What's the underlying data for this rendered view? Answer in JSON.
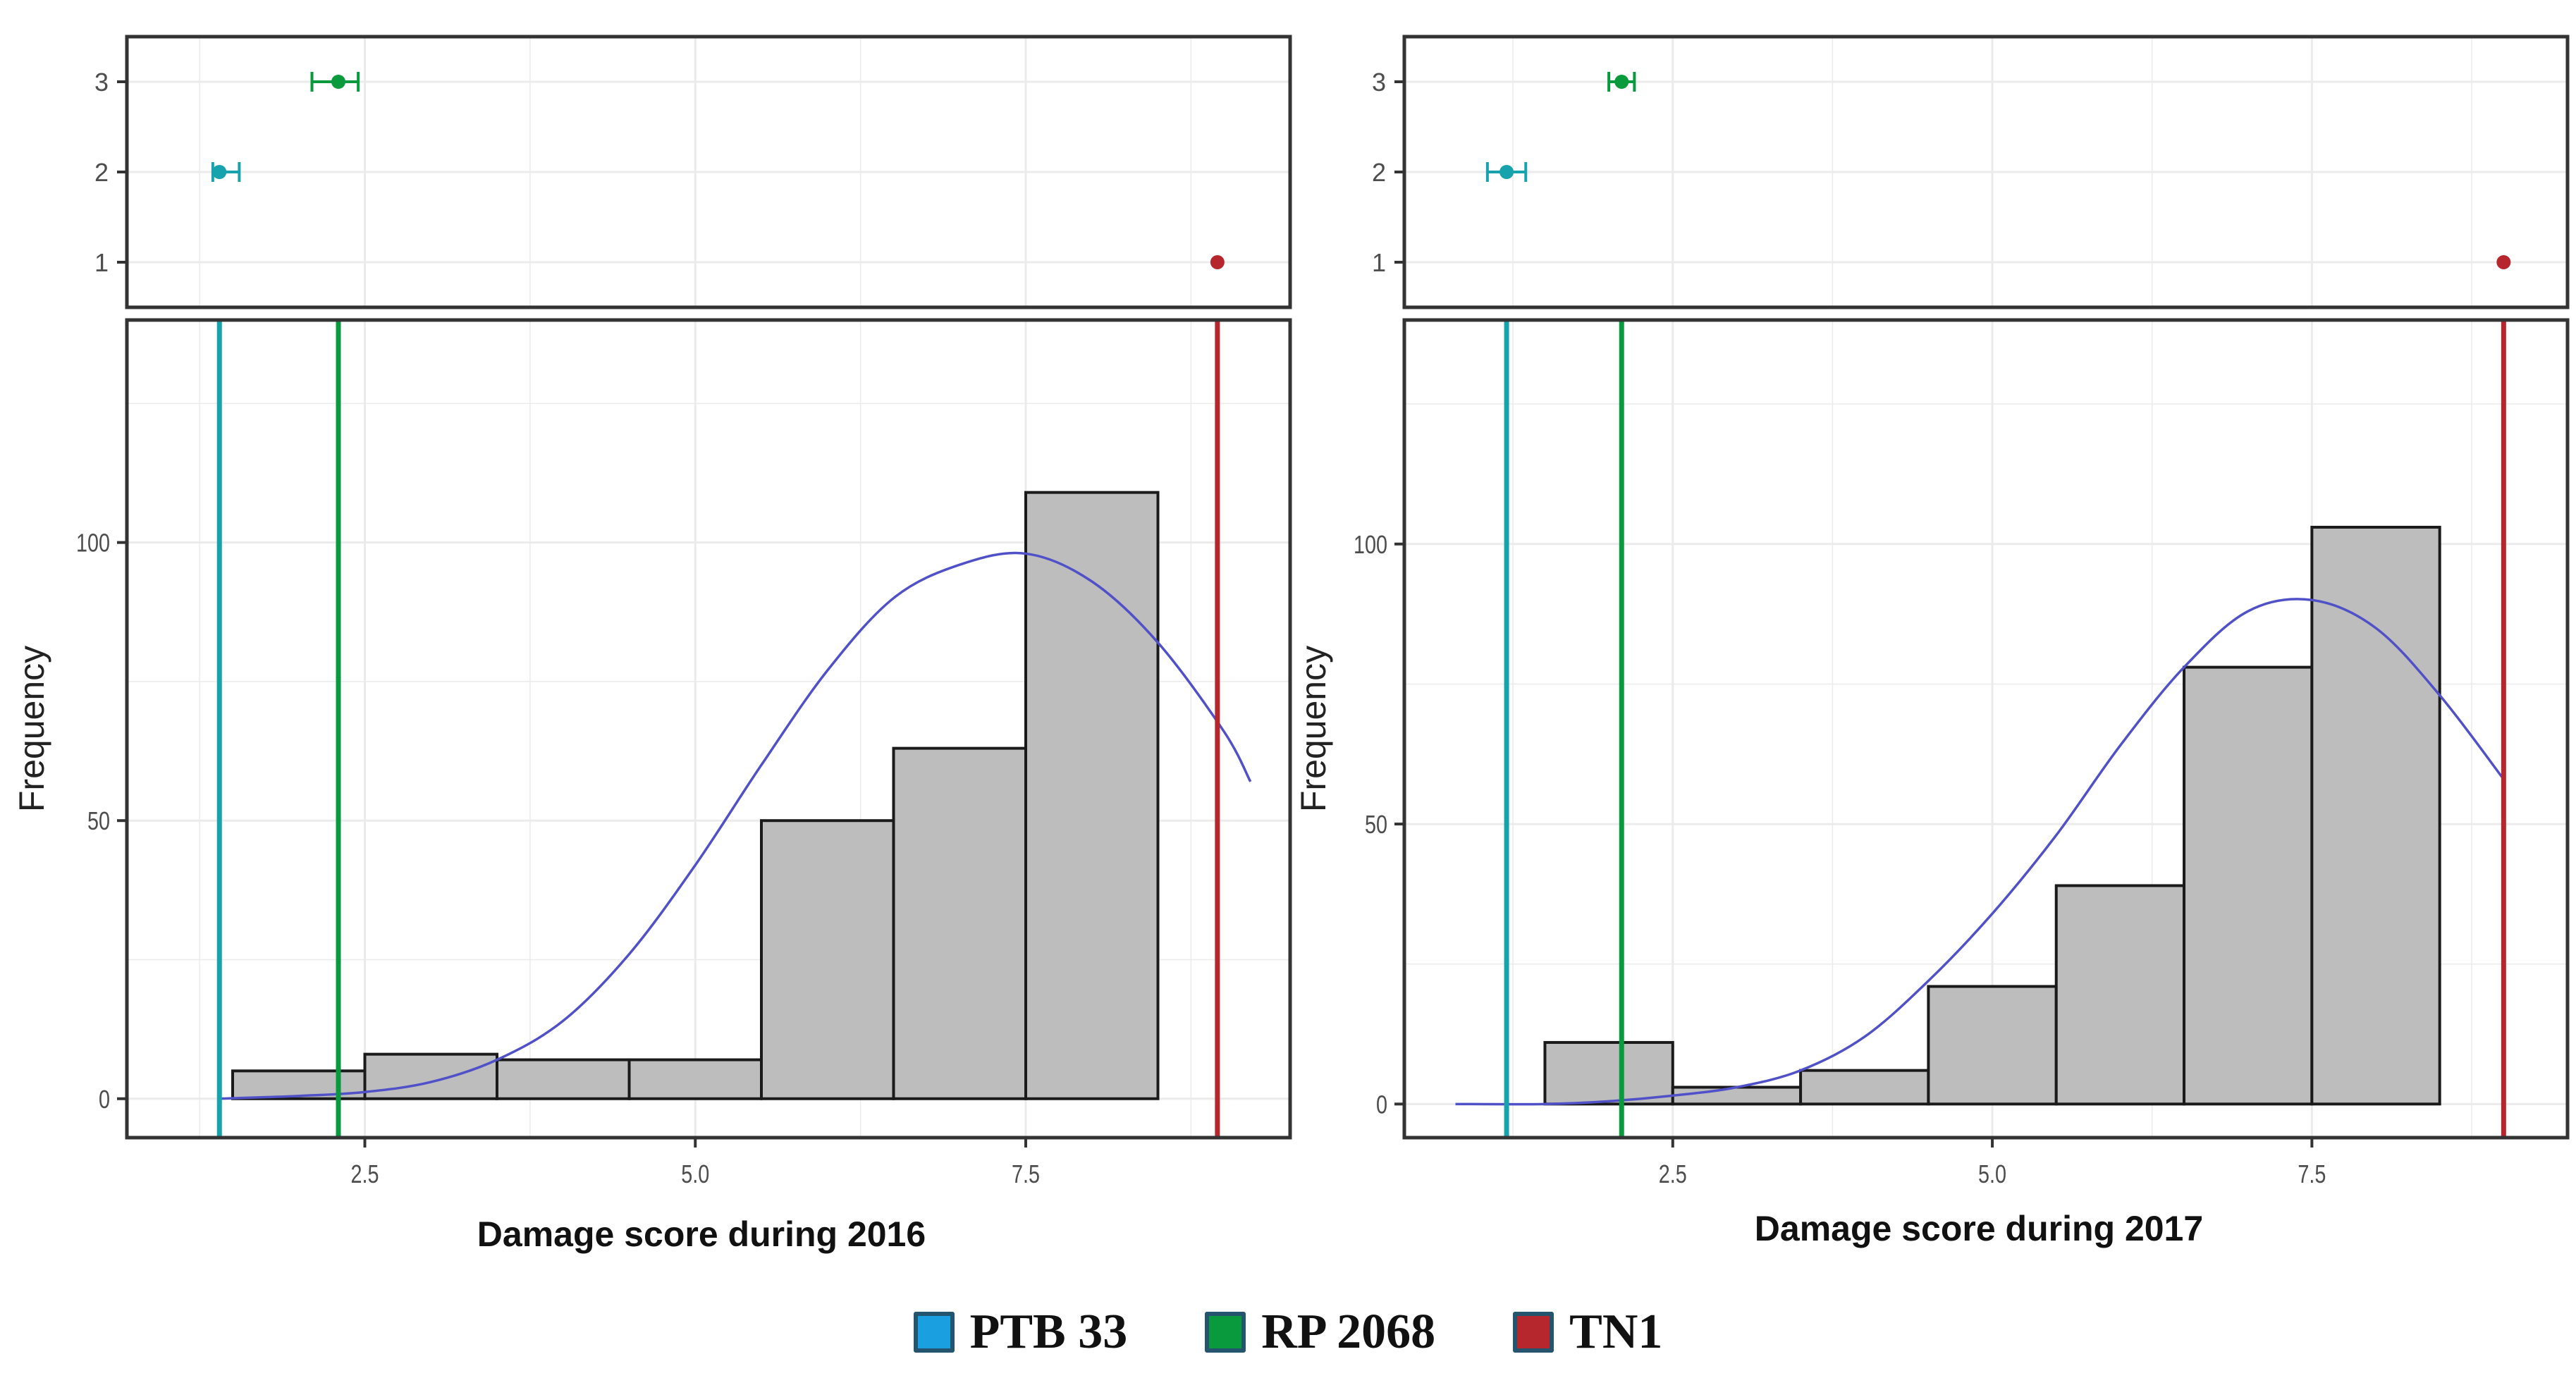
{
  "colors": {
    "ptb33": "#17a3ad",
    "rp2068": "#0a9a3e",
    "tn1": "#b5272d",
    "bar_fill": "#bdbdbd",
    "curve": "#5050c8",
    "grid": "#ebebeb"
  },
  "legend": [
    {
      "label": "PTB 33",
      "swatch": "#1aa0e0"
    },
    {
      "label": "RP 2068",
      "swatch": "#0a9a3e"
    },
    {
      "label": "TN1",
      "swatch": "#b5272d"
    }
  ],
  "chart_data": [
    {
      "type": "bar",
      "title": "",
      "xlabel": "Damage score during 2016",
      "ylabel": "Frequency",
      "xlim": [
        0.7,
        9.5
      ],
      "ylim": [
        -7,
        140
      ],
      "xticks": [
        2.5,
        5.0,
        7.5
      ],
      "xtick_labels": [
        "2.5",
        "5.0",
        "7.5"
      ],
      "yticks": [
        0,
        50,
        100
      ],
      "ytick_labels": [
        "0",
        "50",
        "100"
      ],
      "bins": [
        {
          "x0": 1.5,
          "x1": 2.5,
          "count": 5
        },
        {
          "x0": 2.5,
          "x1": 3.5,
          "count": 8
        },
        {
          "x0": 3.5,
          "x1": 4.5,
          "count": 7
        },
        {
          "x0": 4.5,
          "x1": 5.5,
          "count": 7
        },
        {
          "x0": 5.5,
          "x1": 6.5,
          "count": 50
        },
        {
          "x0": 6.5,
          "x1": 7.5,
          "count": 63
        },
        {
          "x0": 7.5,
          "x1": 8.5,
          "count": 109
        }
      ],
      "curve": {
        "x": [
          1.4,
          2.0,
          2.5,
          3.0,
          3.5,
          4.0,
          4.5,
          5.0,
          5.5,
          6.0,
          6.5,
          7.0,
          7.5,
          8.0,
          8.5,
          9.0,
          9.2
        ],
        "y": [
          0,
          0.5,
          1.2,
          3,
          7,
          14,
          26,
          42,
          60,
          77,
          90,
          96,
          98,
          93,
          82,
          66,
          57
        ]
      },
      "ref_lines": [
        {
          "name": "PTB 33",
          "x": 1.4,
          "color": "#17a3ad"
        },
        {
          "name": "RP 2068",
          "x": 2.3,
          "color": "#0a9a3e"
        },
        {
          "name": "TN1",
          "x": 8.95,
          "color": "#b5272d"
        }
      ],
      "intervals": {
        "yticks": [
          1,
          2,
          3
        ],
        "ytick_labels": [
          "1",
          "2",
          "3"
        ],
        "ylim": [
          0.5,
          3.5
        ],
        "points": [
          {
            "y": 3,
            "mean": 2.3,
            "lo": 2.1,
            "hi": 2.45,
            "color": "#0a9a3e"
          },
          {
            "y": 2,
            "mean": 1.4,
            "lo": 1.35,
            "hi": 1.55,
            "color": "#17a3ad"
          },
          {
            "y": 1,
            "mean": 8.95,
            "lo": 8.95,
            "hi": 8.95,
            "color": "#b5272d"
          }
        ]
      }
    },
    {
      "type": "bar",
      "title": "",
      "xlabel": "Damage score during 2017",
      "ylabel": "Frequency",
      "xlim": [
        0.4,
        9.5
      ],
      "ylim": [
        -6,
        140
      ],
      "xticks": [
        2.5,
        5.0,
        7.5
      ],
      "xtick_labels": [
        "2.5",
        "5.0",
        "7.5"
      ],
      "yticks": [
        0,
        50,
        100
      ],
      "ytick_labels": [
        "0",
        "50",
        "100"
      ],
      "bins": [
        {
          "x0": 1.5,
          "x1": 2.5,
          "count": 11
        },
        {
          "x0": 2.5,
          "x1": 3.5,
          "count": 3
        },
        {
          "x0": 3.5,
          "x1": 4.5,
          "count": 6
        },
        {
          "x0": 4.5,
          "x1": 5.5,
          "count": 21
        },
        {
          "x0": 5.5,
          "x1": 6.5,
          "count": 39
        },
        {
          "x0": 6.5,
          "x1": 7.5,
          "count": 78
        },
        {
          "x0": 7.5,
          "x1": 8.5,
          "count": 103
        }
      ],
      "curve": {
        "x": [
          0.8,
          1.5,
          2.0,
          2.5,
          3.0,
          3.5,
          4.0,
          4.5,
          5.0,
          5.5,
          6.0,
          6.5,
          7.0,
          7.5,
          8.0,
          8.5,
          9.0
        ],
        "y": [
          0,
          0,
          0.5,
          1.5,
          3,
          6,
          12,
          22,
          34,
          48,
          64,
          78,
          88,
          90,
          85,
          73,
          58
        ]
      },
      "ref_lines": [
        {
          "name": "PTB 33",
          "x": 1.2,
          "color": "#17a3ad"
        },
        {
          "name": "RP 2068",
          "x": 2.1,
          "color": "#0a9a3e"
        },
        {
          "name": "TN1",
          "x": 9.0,
          "color": "#b5272d"
        }
      ],
      "intervals": {
        "yticks": [
          1,
          2,
          3
        ],
        "ytick_labels": [
          "1",
          "2",
          "3"
        ],
        "ylim": [
          0.5,
          3.5
        ],
        "points": [
          {
            "y": 3,
            "mean": 2.1,
            "lo": 2.0,
            "hi": 2.2,
            "color": "#0a9a3e"
          },
          {
            "y": 2,
            "mean": 1.2,
            "lo": 1.05,
            "hi": 1.35,
            "color": "#17a3ad"
          },
          {
            "y": 1,
            "mean": 9.0,
            "lo": 9.0,
            "hi": 9.0,
            "color": "#b5272d"
          }
        ]
      }
    }
  ]
}
